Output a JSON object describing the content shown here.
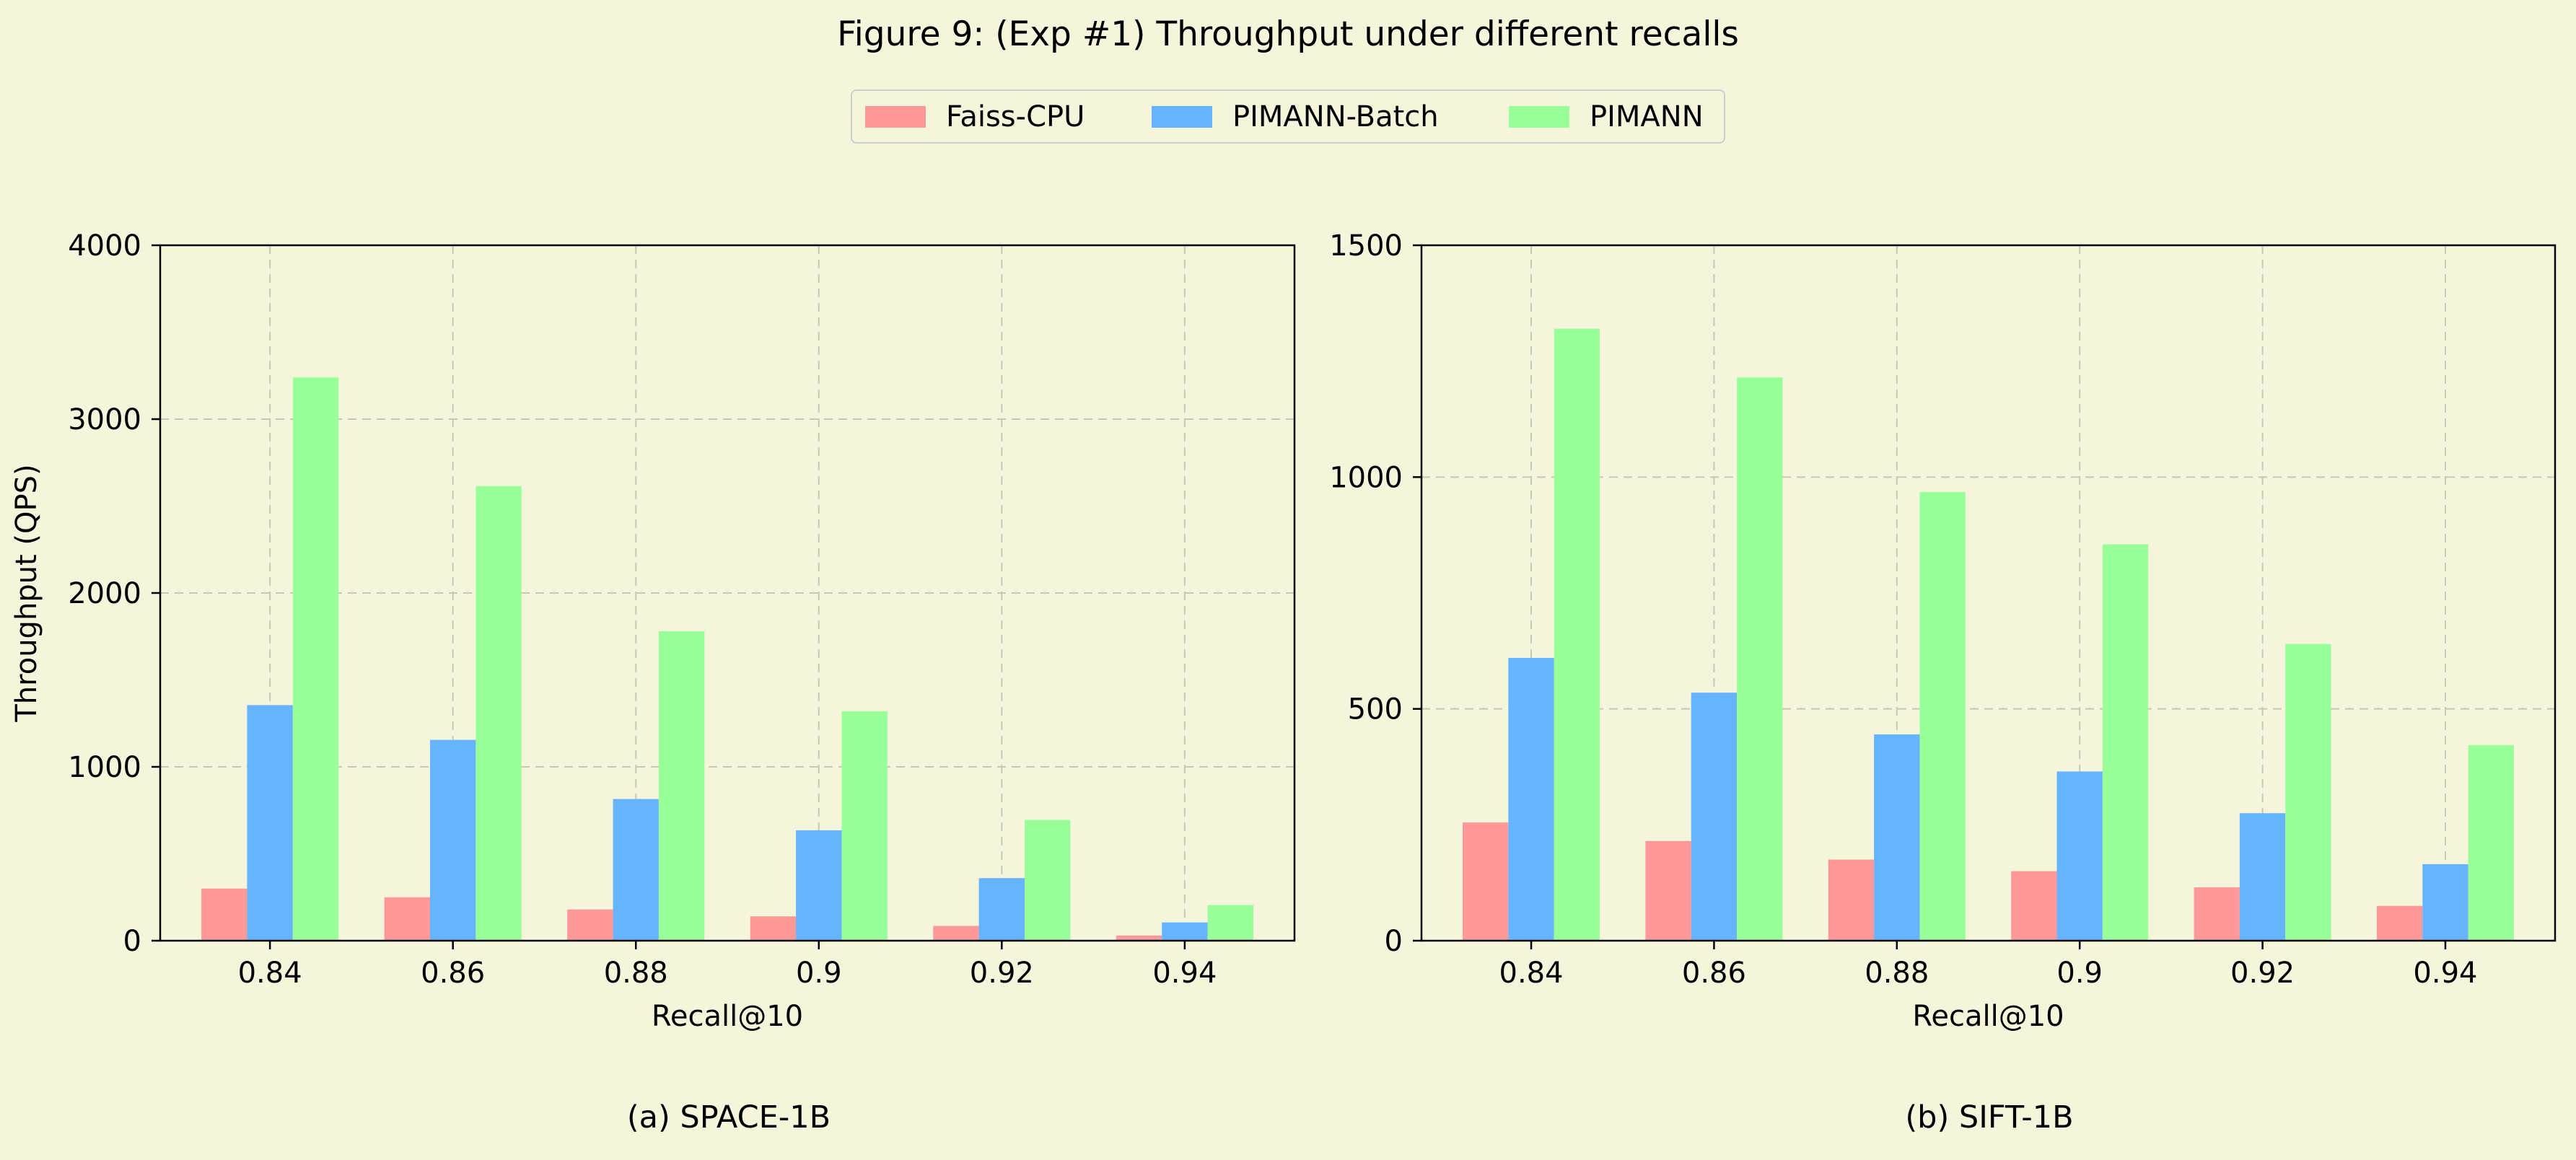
{
  "figure_title": "Figure 9: (Exp #1) Throughput under different recalls",
  "legend": {
    "items": [
      {
        "label": "Faiss-CPU",
        "color": "#ff9999"
      },
      {
        "label": "PIMANN-Batch",
        "color": "#66b3ff"
      },
      {
        "label": "PIMANN",
        "color": "#99ff99"
      }
    ]
  },
  "chart_data": [
    {
      "type": "bar",
      "subcaption": "(a) SPACE-1B",
      "xlabel": "Recall@10",
      "ylabel": "Throughput (QPS)",
      "categories": [
        "0.84",
        "0.86",
        "0.88",
        "0.9",
        "0.92",
        "0.94"
      ],
      "ylim": [
        0,
        4000
      ],
      "yticks": [
        "0",
        "1000",
        "2000",
        "3000",
        "4000"
      ],
      "grid": true,
      "series": [
        {
          "name": "Faiss-CPU",
          "values": [
            300,
            250,
            180,
            140,
            85,
            30
          ]
        },
        {
          "name": "PIMANN-Batch",
          "values": [
            1355,
            1155,
            815,
            635,
            360,
            105
          ]
        },
        {
          "name": "PIMANN",
          "values": [
            3240,
            2615,
            1780,
            1320,
            695,
            205
          ]
        }
      ]
    },
    {
      "type": "bar",
      "subcaption": "(b) SIFT-1B",
      "xlabel": "Recall@10",
      "ylabel": "",
      "categories": [
        "0.84",
        "0.86",
        "0.88",
        "0.9",
        "0.92",
        "0.94"
      ],
      "ylim": [
        0,
        1500
      ],
      "yticks": [
        "0",
        "500",
        "1000",
        "1500"
      ],
      "grid": true,
      "series": [
        {
          "name": "Faiss-CPU",
          "values": [
            255,
            215,
            175,
            150,
            115,
            75
          ]
        },
        {
          "name": "PIMANN-Batch",
          "values": [
            610,
            535,
            445,
            365,
            275,
            165
          ]
        },
        {
          "name": "PIMANN",
          "values": [
            1320,
            1215,
            968,
            855,
            640,
            422
          ]
        }
      ]
    }
  ]
}
